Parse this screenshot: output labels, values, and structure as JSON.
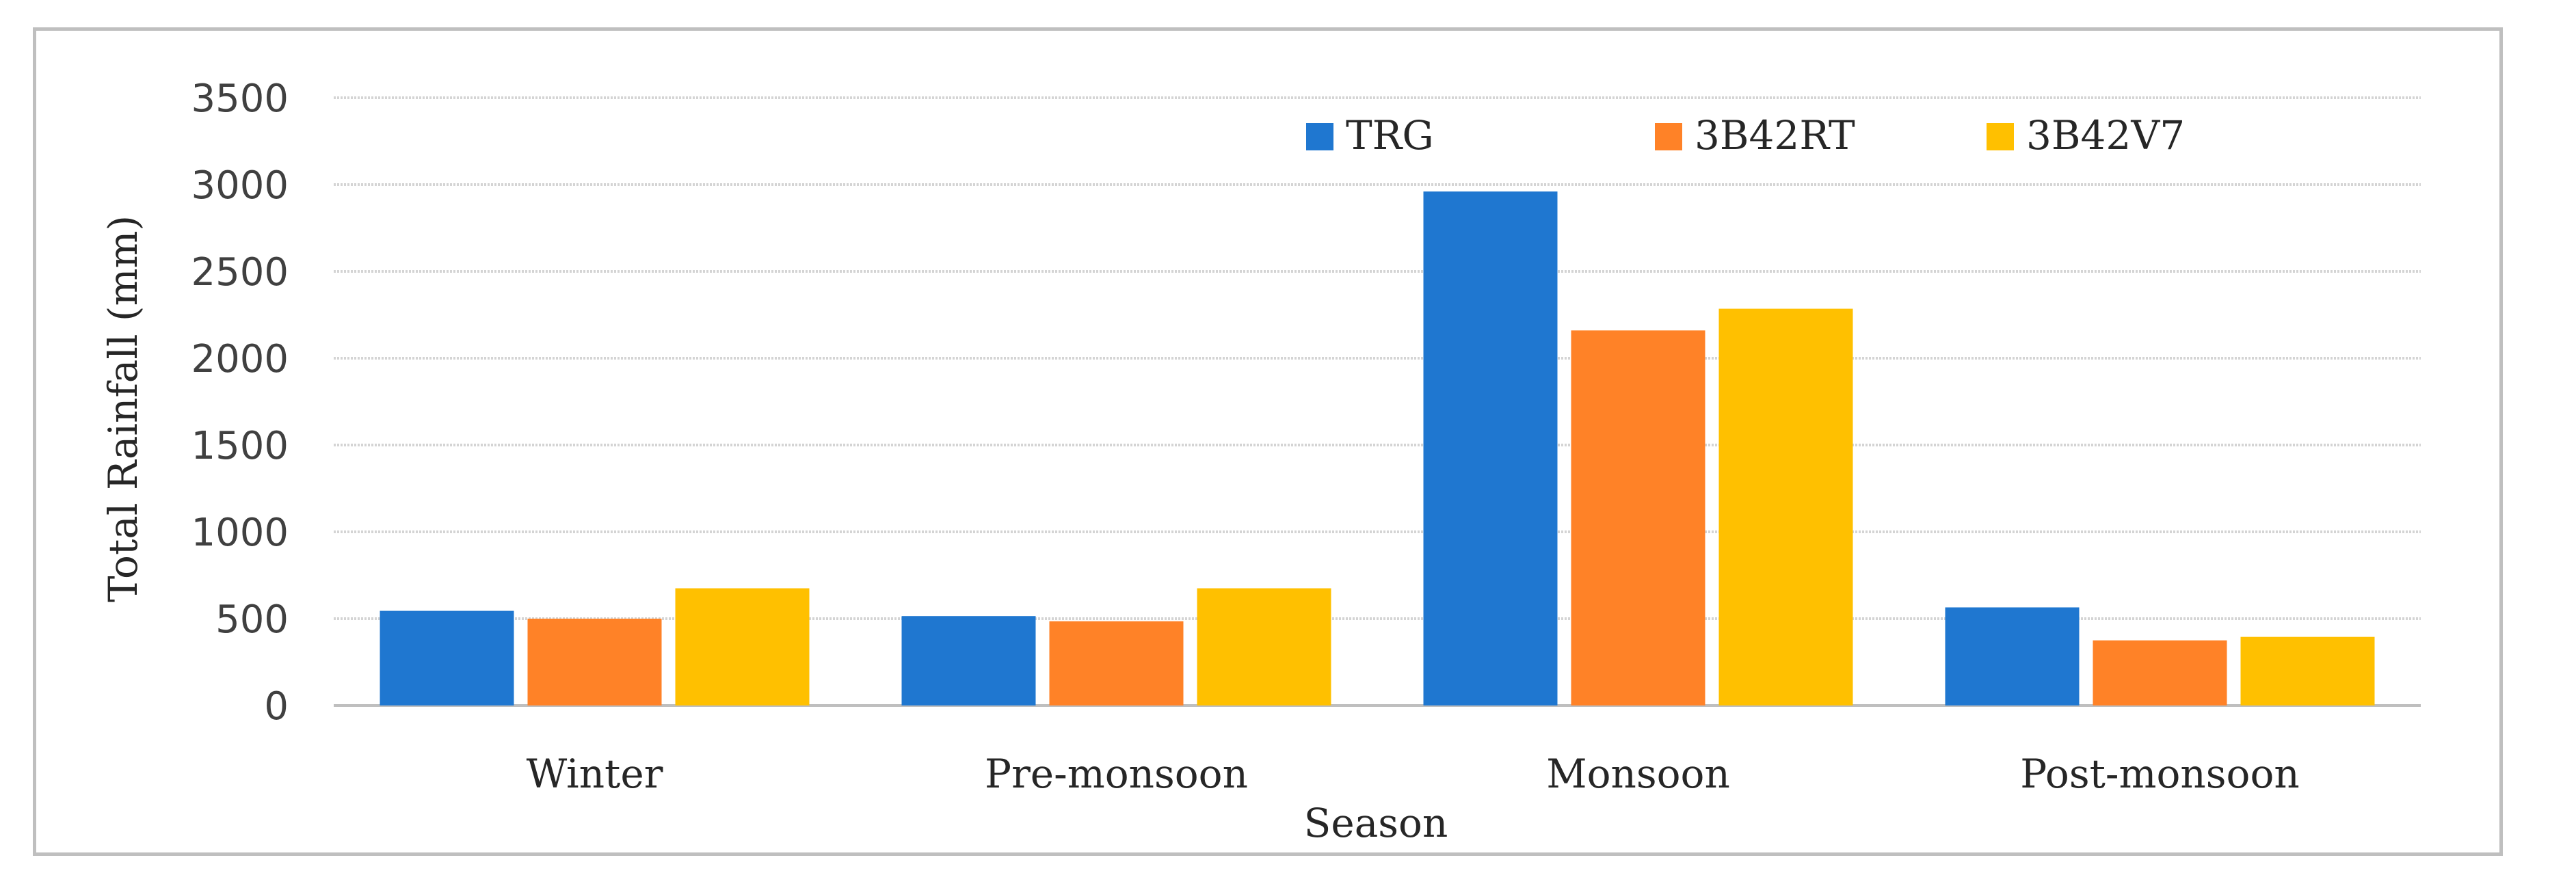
{
  "chart_data": {
    "type": "bar",
    "title": "",
    "xlabel": "Season",
    "ylabel": "Total Rainfall (mm)",
    "categories": [
      "Winter",
      "Pre-monsoon",
      "Monsoon",
      "Post-monsoon"
    ],
    "series": [
      {
        "name": "TRG",
        "color": "#1f77d0",
        "values": [
          545,
          515,
          2960,
          565
        ]
      },
      {
        "name": "3B42RT",
        "color": "#ff8227",
        "values": [
          500,
          485,
          2160,
          375
        ]
      },
      {
        "name": "3B42V7",
        "color": "#ffc000",
        "values": [
          675,
          675,
          2285,
          395
        ]
      }
    ],
    "ylim": [
      0,
      3500
    ],
    "yticks": [
      0,
      500,
      1000,
      1500,
      2000,
      2500,
      3000,
      3500
    ],
    "grid": true,
    "legend_position": "top-right"
  }
}
